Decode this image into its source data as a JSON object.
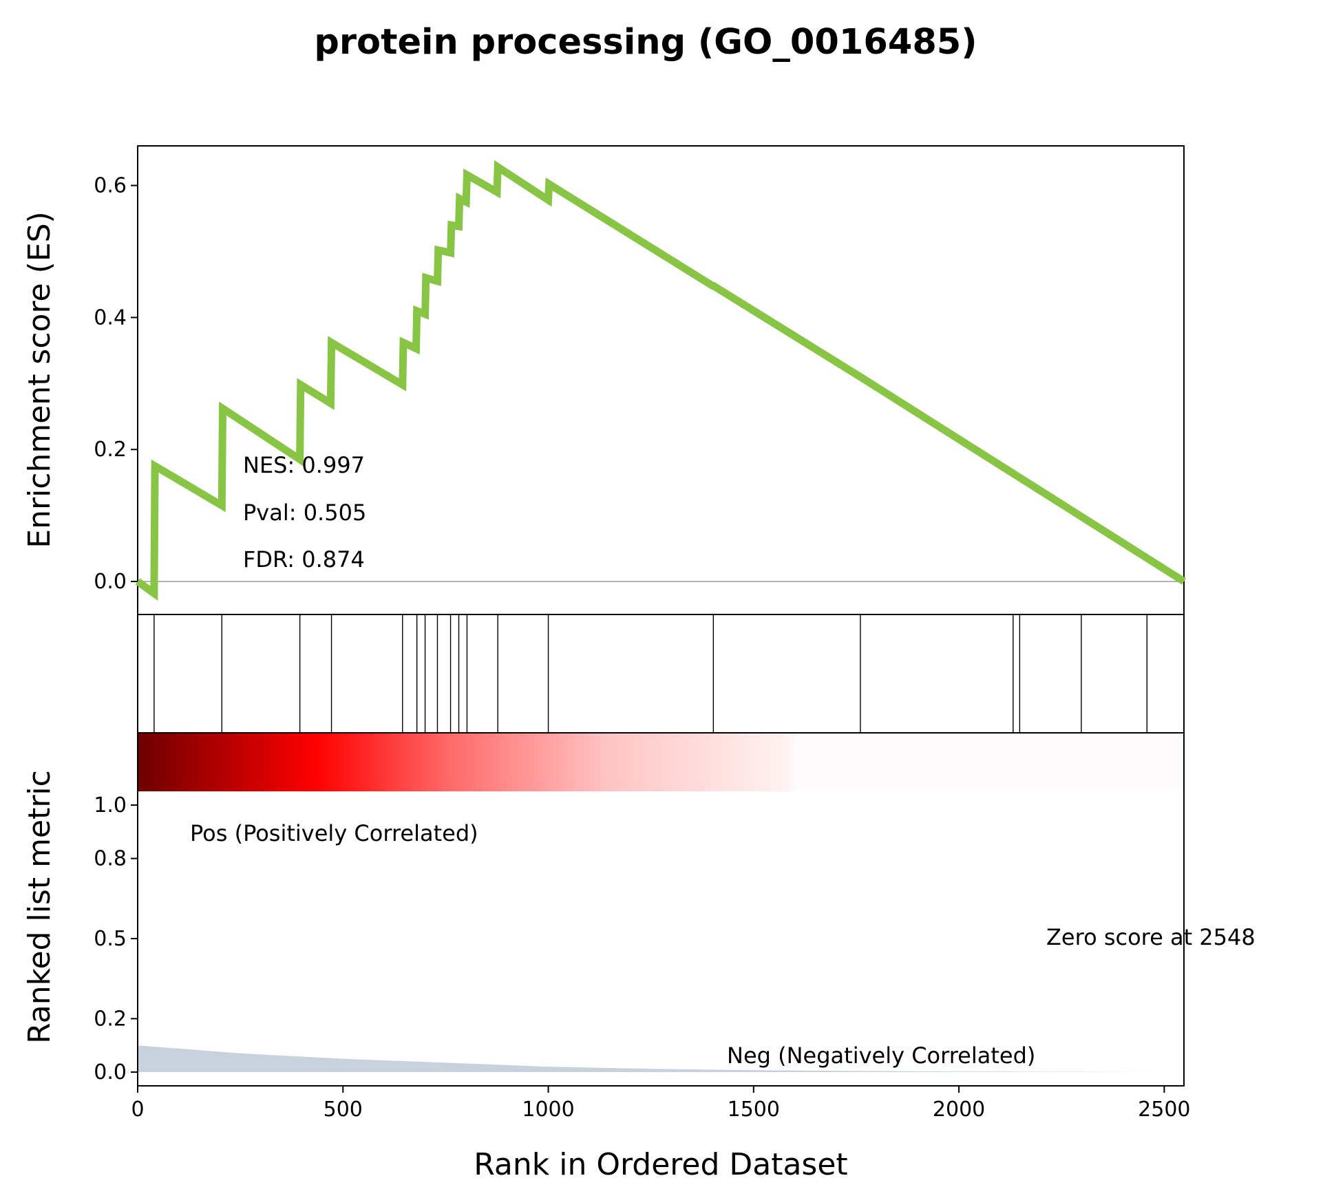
{
  "chart_data": {
    "type": "line",
    "title": "protein processing (GO_0016485)",
    "xlabel": "Rank in Ordered Dataset",
    "xlim": [
      0,
      2548
    ],
    "x_ticks": [
      "0",
      "500",
      "1000",
      "1500",
      "2000",
      "2500"
    ],
    "es_panel": {
      "ylabel": "Enrichment score (ES)",
      "ylim": [
        -0.05,
        0.66
      ],
      "y_ticks": [
        "0.0",
        "0.2",
        "0.4",
        "0.6"
      ],
      "line_color": "#88c544",
      "x": [
        0,
        40,
        42,
        205,
        207,
        395,
        397,
        470,
        472,
        645,
        647,
        678,
        680,
        700,
        702,
        730,
        732,
        762,
        764,
        782,
        784,
        800,
        802,
        875,
        877,
        1000,
        1002,
        1400,
        1402,
        1760,
        2548
      ],
      "y": [
        0.0,
        -0.018,
        0.175,
        0.115,
        0.262,
        0.185,
        0.298,
        0.27,
        0.362,
        0.298,
        0.362,
        0.353,
        0.41,
        0.405,
        0.46,
        0.455,
        0.502,
        0.498,
        0.54,
        0.538,
        0.58,
        0.575,
        0.616,
        0.59,
        0.628,
        0.578,
        0.602,
        0.448,
        0.448,
        0.31,
        0.0
      ]
    },
    "stats": {
      "nes": "NES: 0.997",
      "pval": "Pval: 0.505",
      "fdr": "FDR: 0.874"
    },
    "hits": [
      40,
      205,
      395,
      472,
      645,
      680,
      700,
      730,
      762,
      782,
      802,
      877,
      1000,
      1402,
      1760,
      2132,
      2148,
      2298,
      2458
    ],
    "rank_panel": {
      "ylabel": "Ranked list metric",
      "y_ticks": [
        "0.0",
        "0.2",
        "0.5",
        "0.8",
        "1.0"
      ],
      "pos_label": "Pos (Positively Correlated)",
      "neg_label": "Neg (Negatively Correlated)",
      "zero_label": "Zero score at 2548",
      "pos_color": "#ff0000",
      "neg_color": "#0000ff",
      "fill_color": "#c8d2dc",
      "metric_x": [
        0,
        250,
        500,
        750,
        1000,
        1250,
        1500,
        1750,
        2000,
        2548
      ],
      "metric_y": [
        0.1,
        0.07,
        0.05,
        0.035,
        0.02,
        0.012,
        0.007,
        0.004,
        0.002,
        0.0
      ]
    }
  }
}
